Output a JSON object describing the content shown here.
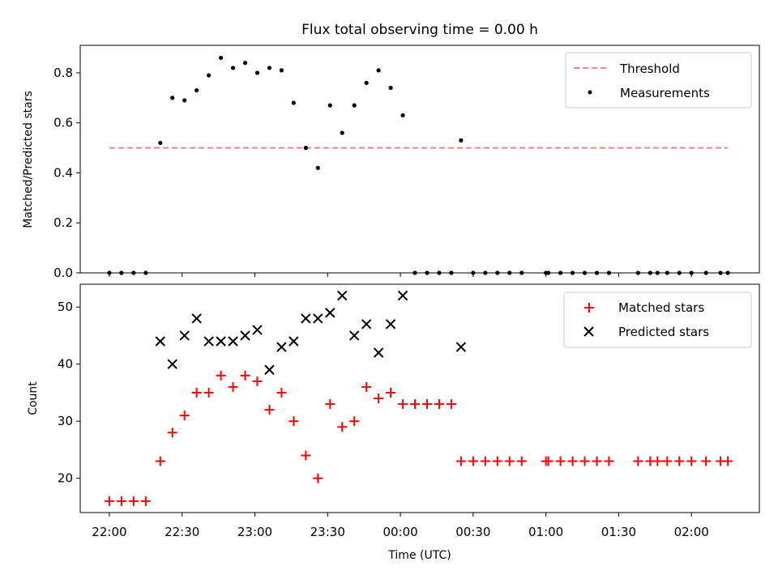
{
  "chart_data": [
    {
      "type": "scatter",
      "title": "Flux total observing time = 0.00 h",
      "xlabel": "",
      "ylabel": "Matched/Predicted stars",
      "ylim": [
        0,
        0.91
      ],
      "yticks": [
        "0.0",
        "0.2",
        "0.4",
        "0.6",
        "0.8"
      ],
      "threshold": {
        "name": "Threshold",
        "value": 0.5,
        "x_range": [
          "22:00",
          "02:15"
        ],
        "color": "#ff7f7f"
      },
      "series": [
        {
          "name": "Measurements",
          "color": "#000000",
          "points": [
            {
              "x": "22:00",
              "y": 0
            },
            {
              "x": "22:05",
              "y": 0
            },
            {
              "x": "22:10",
              "y": 0
            },
            {
              "x": "22:15",
              "y": 0
            },
            {
              "x": "22:21",
              "y": 0.52
            },
            {
              "x": "22:26",
              "y": 0.7
            },
            {
              "x": "22:31",
              "y": 0.69
            },
            {
              "x": "22:36",
              "y": 0.73
            },
            {
              "x": "22:41",
              "y": 0.79
            },
            {
              "x": "22:46",
              "y": 0.86
            },
            {
              "x": "22:51",
              "y": 0.82
            },
            {
              "x": "22:56",
              "y": 0.84
            },
            {
              "x": "23:01",
              "y": 0.8
            },
            {
              "x": "23:06",
              "y": 0.82
            },
            {
              "x": "23:11",
              "y": 0.81
            },
            {
              "x": "23:16",
              "y": 0.68
            },
            {
              "x": "23:21",
              "y": 0.5
            },
            {
              "x": "23:26",
              "y": 0.42
            },
            {
              "x": "23:31",
              "y": 0.67
            },
            {
              "x": "23:36",
              "y": 0.56
            },
            {
              "x": "23:41",
              "y": 0.67
            },
            {
              "x": "23:46",
              "y": 0.76
            },
            {
              "x": "23:51",
              "y": 0.81
            },
            {
              "x": "23:56",
              "y": 0.74
            },
            {
              "x": "00:01",
              "y": 0.63
            },
            {
              "x": "00:06",
              "y": 0
            },
            {
              "x": "00:11",
              "y": 0
            },
            {
              "x": "00:16",
              "y": 0
            },
            {
              "x": "00:21",
              "y": 0
            },
            {
              "x": "00:25",
              "y": 0.53
            },
            {
              "x": "00:30",
              "y": 0
            },
            {
              "x": "00:35",
              "y": 0
            },
            {
              "x": "00:40",
              "y": 0
            },
            {
              "x": "00:45",
              "y": 0
            },
            {
              "x": "00:50",
              "y": 0
            },
            {
              "x": "01:00",
              "y": 0
            },
            {
              "x": "01:01",
              "y": 0
            },
            {
              "x": "01:06",
              "y": 0
            },
            {
              "x": "01:11",
              "y": 0
            },
            {
              "x": "01:16",
              "y": 0
            },
            {
              "x": "01:21",
              "y": 0
            },
            {
              "x": "01:26",
              "y": 0
            },
            {
              "x": "01:38",
              "y": 0
            },
            {
              "x": "01:43",
              "y": 0
            },
            {
              "x": "01:46",
              "y": 0
            },
            {
              "x": "01:50",
              "y": 0
            },
            {
              "x": "01:55",
              "y": 0
            },
            {
              "x": "02:00",
              "y": 0
            },
            {
              "x": "02:06",
              "y": 0
            },
            {
              "x": "02:12",
              "y": 0
            },
            {
              "x": "02:15",
              "y": 0
            }
          ]
        }
      ],
      "legend": {
        "position": "top-right",
        "entries": [
          "Threshold",
          "Measurements"
        ]
      }
    },
    {
      "type": "scatter",
      "title": "",
      "xlabel": "Time (UTC)",
      "ylabel": "Count",
      "ylim": [
        14,
        54
      ],
      "yticks": [
        "20",
        "30",
        "40",
        "50"
      ],
      "xlim": [
        "21:48",
        "02:28"
      ],
      "xticks": [
        "22:00",
        "22:30",
        "23:00",
        "23:30",
        "00:00",
        "00:30",
        "01:00",
        "01:30",
        "02:00"
      ],
      "series": [
        {
          "name": "Matched stars",
          "marker": "plus",
          "color": "#ff0000",
          "points": [
            {
              "x": "22:00",
              "y": 16
            },
            {
              "x": "22:05",
              "y": 16
            },
            {
              "x": "22:10",
              "y": 16
            },
            {
              "x": "22:15",
              "y": 16
            },
            {
              "x": "22:21",
              "y": 23
            },
            {
              "x": "22:26",
              "y": 28
            },
            {
              "x": "22:31",
              "y": 31
            },
            {
              "x": "22:36",
              "y": 35
            },
            {
              "x": "22:41",
              "y": 35
            },
            {
              "x": "22:46",
              "y": 38
            },
            {
              "x": "22:51",
              "y": 36
            },
            {
              "x": "22:56",
              "y": 38
            },
            {
              "x": "23:01",
              "y": 37
            },
            {
              "x": "23:06",
              "y": 32
            },
            {
              "x": "23:11",
              "y": 35
            },
            {
              "x": "23:16",
              "y": 30
            },
            {
              "x": "23:21",
              "y": 24
            },
            {
              "x": "23:26",
              "y": 20
            },
            {
              "x": "23:31",
              "y": 33
            },
            {
              "x": "23:36",
              "y": 29
            },
            {
              "x": "23:41",
              "y": 30
            },
            {
              "x": "23:46",
              "y": 36
            },
            {
              "x": "23:51",
              "y": 34
            },
            {
              "x": "23:56",
              "y": 35
            },
            {
              "x": "00:01",
              "y": 33
            },
            {
              "x": "00:06",
              "y": 33
            },
            {
              "x": "00:11",
              "y": 33
            },
            {
              "x": "00:16",
              "y": 33
            },
            {
              "x": "00:21",
              "y": 33
            },
            {
              "x": "00:25",
              "y": 23
            },
            {
              "x": "00:30",
              "y": 23
            },
            {
              "x": "00:35",
              "y": 23
            },
            {
              "x": "00:40",
              "y": 23
            },
            {
              "x": "00:45",
              "y": 23
            },
            {
              "x": "00:50",
              "y": 23
            },
            {
              "x": "01:00",
              "y": 23
            },
            {
              "x": "01:01",
              "y": 23
            },
            {
              "x": "01:06",
              "y": 23
            },
            {
              "x": "01:11",
              "y": 23
            },
            {
              "x": "01:16",
              "y": 23
            },
            {
              "x": "01:21",
              "y": 23
            },
            {
              "x": "01:26",
              "y": 23
            },
            {
              "x": "01:38",
              "y": 23
            },
            {
              "x": "01:43",
              "y": 23
            },
            {
              "x": "01:46",
              "y": 23
            },
            {
              "x": "01:50",
              "y": 23
            },
            {
              "x": "01:55",
              "y": 23
            },
            {
              "x": "02:00",
              "y": 23
            },
            {
              "x": "02:06",
              "y": 23
            },
            {
              "x": "02:12",
              "y": 23
            },
            {
              "x": "02:15",
              "y": 23
            }
          ]
        },
        {
          "name": "Predicted stars",
          "marker": "x",
          "color": "#000000",
          "points": [
            {
              "x": "22:21",
              "y": 44
            },
            {
              "x": "22:26",
              "y": 40
            },
            {
              "x": "22:31",
              "y": 45
            },
            {
              "x": "22:36",
              "y": 48
            },
            {
              "x": "22:41",
              "y": 44
            },
            {
              "x": "22:46",
              "y": 44
            },
            {
              "x": "22:51",
              "y": 44
            },
            {
              "x": "22:56",
              "y": 45
            },
            {
              "x": "23:01",
              "y": 46
            },
            {
              "x": "23:06",
              "y": 39
            },
            {
              "x": "23:11",
              "y": 43
            },
            {
              "x": "23:16",
              "y": 44
            },
            {
              "x": "23:21",
              "y": 48
            },
            {
              "x": "23:26",
              "y": 48
            },
            {
              "x": "23:31",
              "y": 49
            },
            {
              "x": "23:36",
              "y": 52
            },
            {
              "x": "23:41",
              "y": 45
            },
            {
              "x": "23:46",
              "y": 47
            },
            {
              "x": "23:51",
              "y": 42
            },
            {
              "x": "23:56",
              "y": 47
            },
            {
              "x": "00:01",
              "y": 52
            },
            {
              "x": "00:25",
              "y": 43
            }
          ]
        }
      ],
      "legend": {
        "position": "top-right",
        "entries": [
          "Matched stars",
          "Predicted stars"
        ]
      }
    }
  ]
}
